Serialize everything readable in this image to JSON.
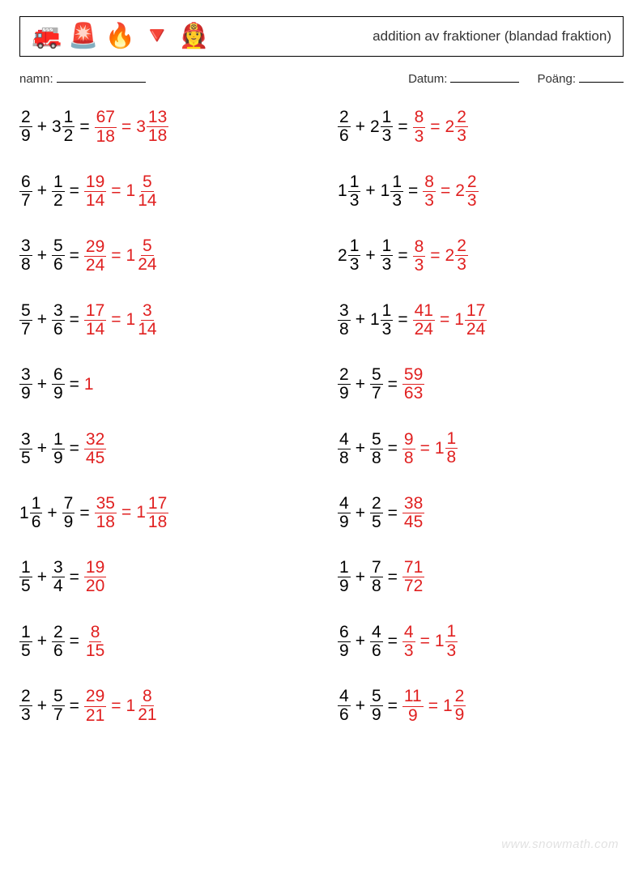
{
  "header": {
    "emojis": [
      "🚒",
      "🚨",
      "🔥",
      "🔻",
      "👩‍🚒"
    ],
    "title": "addition av fraktioner (blandad fraktion)"
  },
  "info": {
    "name_label": "namn:",
    "date_label": "Datum:",
    "score_label": "Poäng:"
  },
  "colors": {
    "text": "#000000",
    "answer": "#e02020",
    "background": "#ffffff",
    "border": "#000000"
  },
  "watermark": "www.snowmath.com",
  "problems": [
    {
      "a": {
        "w": 0,
        "n": 2,
        "d": 9
      },
      "b": {
        "w": 3,
        "n": 1,
        "d": 2
      },
      "imp": {
        "n": 67,
        "d": 18
      },
      "mix": {
        "w": 3,
        "n": 13,
        "d": 18
      }
    },
    {
      "a": {
        "w": 0,
        "n": 2,
        "d": 6
      },
      "b": {
        "w": 2,
        "n": 1,
        "d": 3
      },
      "imp": {
        "n": 8,
        "d": 3
      },
      "mix": {
        "w": 2,
        "n": 2,
        "d": 3
      }
    },
    {
      "a": {
        "w": 0,
        "n": 6,
        "d": 7
      },
      "b": {
        "w": 0,
        "n": 1,
        "d": 2
      },
      "imp": {
        "n": 19,
        "d": 14
      },
      "mix": {
        "w": 1,
        "n": 5,
        "d": 14
      }
    },
    {
      "a": {
        "w": 1,
        "n": 1,
        "d": 3
      },
      "b": {
        "w": 1,
        "n": 1,
        "d": 3
      },
      "imp": {
        "n": 8,
        "d": 3
      },
      "mix": {
        "w": 2,
        "n": 2,
        "d": 3
      }
    },
    {
      "a": {
        "w": 0,
        "n": 3,
        "d": 8
      },
      "b": {
        "w": 0,
        "n": 5,
        "d": 6
      },
      "imp": {
        "n": 29,
        "d": 24
      },
      "mix": {
        "w": 1,
        "n": 5,
        "d": 24
      }
    },
    {
      "a": {
        "w": 2,
        "n": 1,
        "d": 3
      },
      "b": {
        "w": 0,
        "n": 1,
        "d": 3
      },
      "imp": {
        "n": 8,
        "d": 3
      },
      "mix": {
        "w": 2,
        "n": 2,
        "d": 3
      }
    },
    {
      "a": {
        "w": 0,
        "n": 5,
        "d": 7
      },
      "b": {
        "w": 0,
        "n": 3,
        "d": 6
      },
      "imp": {
        "n": 17,
        "d": 14
      },
      "mix": {
        "w": 1,
        "n": 3,
        "d": 14
      }
    },
    {
      "a": {
        "w": 0,
        "n": 3,
        "d": 8
      },
      "b": {
        "w": 1,
        "n": 1,
        "d": 3
      },
      "imp": {
        "n": 41,
        "d": 24
      },
      "mix": {
        "w": 1,
        "n": 17,
        "d": 24
      }
    },
    {
      "a": {
        "w": 0,
        "n": 3,
        "d": 9
      },
      "b": {
        "w": 0,
        "n": 6,
        "d": 9
      },
      "single": "1"
    },
    {
      "a": {
        "w": 0,
        "n": 2,
        "d": 9
      },
      "b": {
        "w": 0,
        "n": 5,
        "d": 7
      },
      "imp": {
        "n": 59,
        "d": 63
      }
    },
    {
      "a": {
        "w": 0,
        "n": 3,
        "d": 5
      },
      "b": {
        "w": 0,
        "n": 1,
        "d": 9
      },
      "imp": {
        "n": 32,
        "d": 45
      }
    },
    {
      "a": {
        "w": 0,
        "n": 4,
        "d": 8
      },
      "b": {
        "w": 0,
        "n": 5,
        "d": 8
      },
      "imp": {
        "n": 9,
        "d": 8
      },
      "mix": {
        "w": 1,
        "n": 1,
        "d": 8
      }
    },
    {
      "a": {
        "w": 1,
        "n": 1,
        "d": 6
      },
      "b": {
        "w": 0,
        "n": 7,
        "d": 9
      },
      "imp": {
        "n": 35,
        "d": 18
      },
      "mix": {
        "w": 1,
        "n": 17,
        "d": 18
      }
    },
    {
      "a": {
        "w": 0,
        "n": 4,
        "d": 9
      },
      "b": {
        "w": 0,
        "n": 2,
        "d": 5
      },
      "imp": {
        "n": 38,
        "d": 45
      }
    },
    {
      "a": {
        "w": 0,
        "n": 1,
        "d": 5
      },
      "b": {
        "w": 0,
        "n": 3,
        "d": 4
      },
      "imp": {
        "n": 19,
        "d": 20
      }
    },
    {
      "a": {
        "w": 0,
        "n": 1,
        "d": 9
      },
      "b": {
        "w": 0,
        "n": 7,
        "d": 8
      },
      "imp": {
        "n": 71,
        "d": 72
      }
    },
    {
      "a": {
        "w": 0,
        "n": 1,
        "d": 5
      },
      "b": {
        "w": 0,
        "n": 2,
        "d": 6
      },
      "imp": {
        "n": 8,
        "d": 15
      }
    },
    {
      "a": {
        "w": 0,
        "n": 6,
        "d": 9
      },
      "b": {
        "w": 0,
        "n": 4,
        "d": 6
      },
      "imp": {
        "n": 4,
        "d": 3
      },
      "mix": {
        "w": 1,
        "n": 1,
        "d": 3
      }
    },
    {
      "a": {
        "w": 0,
        "n": 2,
        "d": 3
      },
      "b": {
        "w": 0,
        "n": 5,
        "d": 7
      },
      "imp": {
        "n": 29,
        "d": 21
      },
      "mix": {
        "w": 1,
        "n": 8,
        "d": 21
      }
    },
    {
      "a": {
        "w": 0,
        "n": 4,
        "d": 6
      },
      "b": {
        "w": 0,
        "n": 5,
        "d": 9
      },
      "imp": {
        "n": 11,
        "d": 9
      },
      "mix": {
        "w": 1,
        "n": 2,
        "d": 9
      }
    }
  ]
}
